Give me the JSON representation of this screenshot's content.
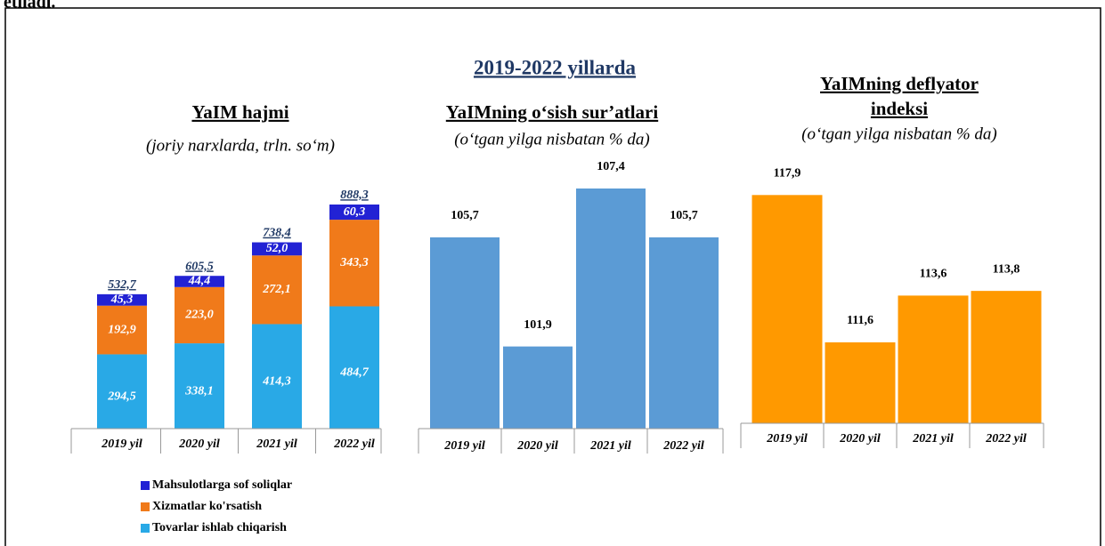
{
  "header_text": "etiladi.",
  "title": "2019-2022 yillarda",
  "chart_data": [
    {
      "type": "stacked_bar",
      "title": "YaIM hajmi",
      "subtitle": "(joriy narxlarda, trln. so‘m)",
      "categories": [
        "2019 yil",
        "2020 yil",
        "2021 yil",
        "2022 yil"
      ],
      "series": [
        {
          "name": "Tovarlar ishlab chiqarish",
          "color": "#29a9e6",
          "values": [
            294.5,
            338.1,
            414.3,
            484.7
          ],
          "value_labels": [
            "294,5",
            "338,1",
            "414,3",
            "484,7"
          ]
        },
        {
          "name": "Xizmatlar ko'rsatish",
          "color": "#f07a1a",
          "values": [
            192.9,
            223.0,
            272.1,
            343.3
          ],
          "value_labels": [
            "192,9",
            "223,0",
            "272,1",
            "343,3"
          ]
        },
        {
          "name": "Mahsulotlarga sof soliqlar",
          "color": "#2222d4",
          "values": [
            45.3,
            44.4,
            52.0,
            60.3
          ],
          "value_labels": [
            "45,3",
            "44,4",
            "52,0",
            "60,3"
          ]
        }
      ],
      "totals": [
        532.7,
        605.5,
        738.4,
        888.3
      ],
      "totals_labels": [
        "532,7",
        "605,5",
        "738,4",
        "888,3"
      ]
    },
    {
      "type": "bar",
      "title": "YaIMning o‘sish sur’atlari",
      "subtitle": "(o‘tgan yilga nisbatan % da)",
      "categories": [
        "2019 yil",
        "2020 yil",
        "2021 yil",
        "2022 yil"
      ],
      "color": "#5b9bd5",
      "values": [
        105.7,
        101.9,
        107.4,
        105.7
      ],
      "value_labels": [
        "105,7",
        "101,9",
        "107,4",
        "105,7"
      ]
    },
    {
      "type": "bar",
      "title": [
        "YaIMning deflyator",
        "indeksi"
      ],
      "subtitle": "(o‘tgan yilga nisbatan % da)",
      "categories": [
        "2019 yil",
        "2020 yil",
        "2021 yil",
        "2022 yil"
      ],
      "color": "#ff9900",
      "values": [
        117.9,
        111.6,
        113.6,
        113.8
      ],
      "value_labels": [
        "117,9",
        "111,6",
        "113,6",
        "113,8"
      ]
    }
  ]
}
